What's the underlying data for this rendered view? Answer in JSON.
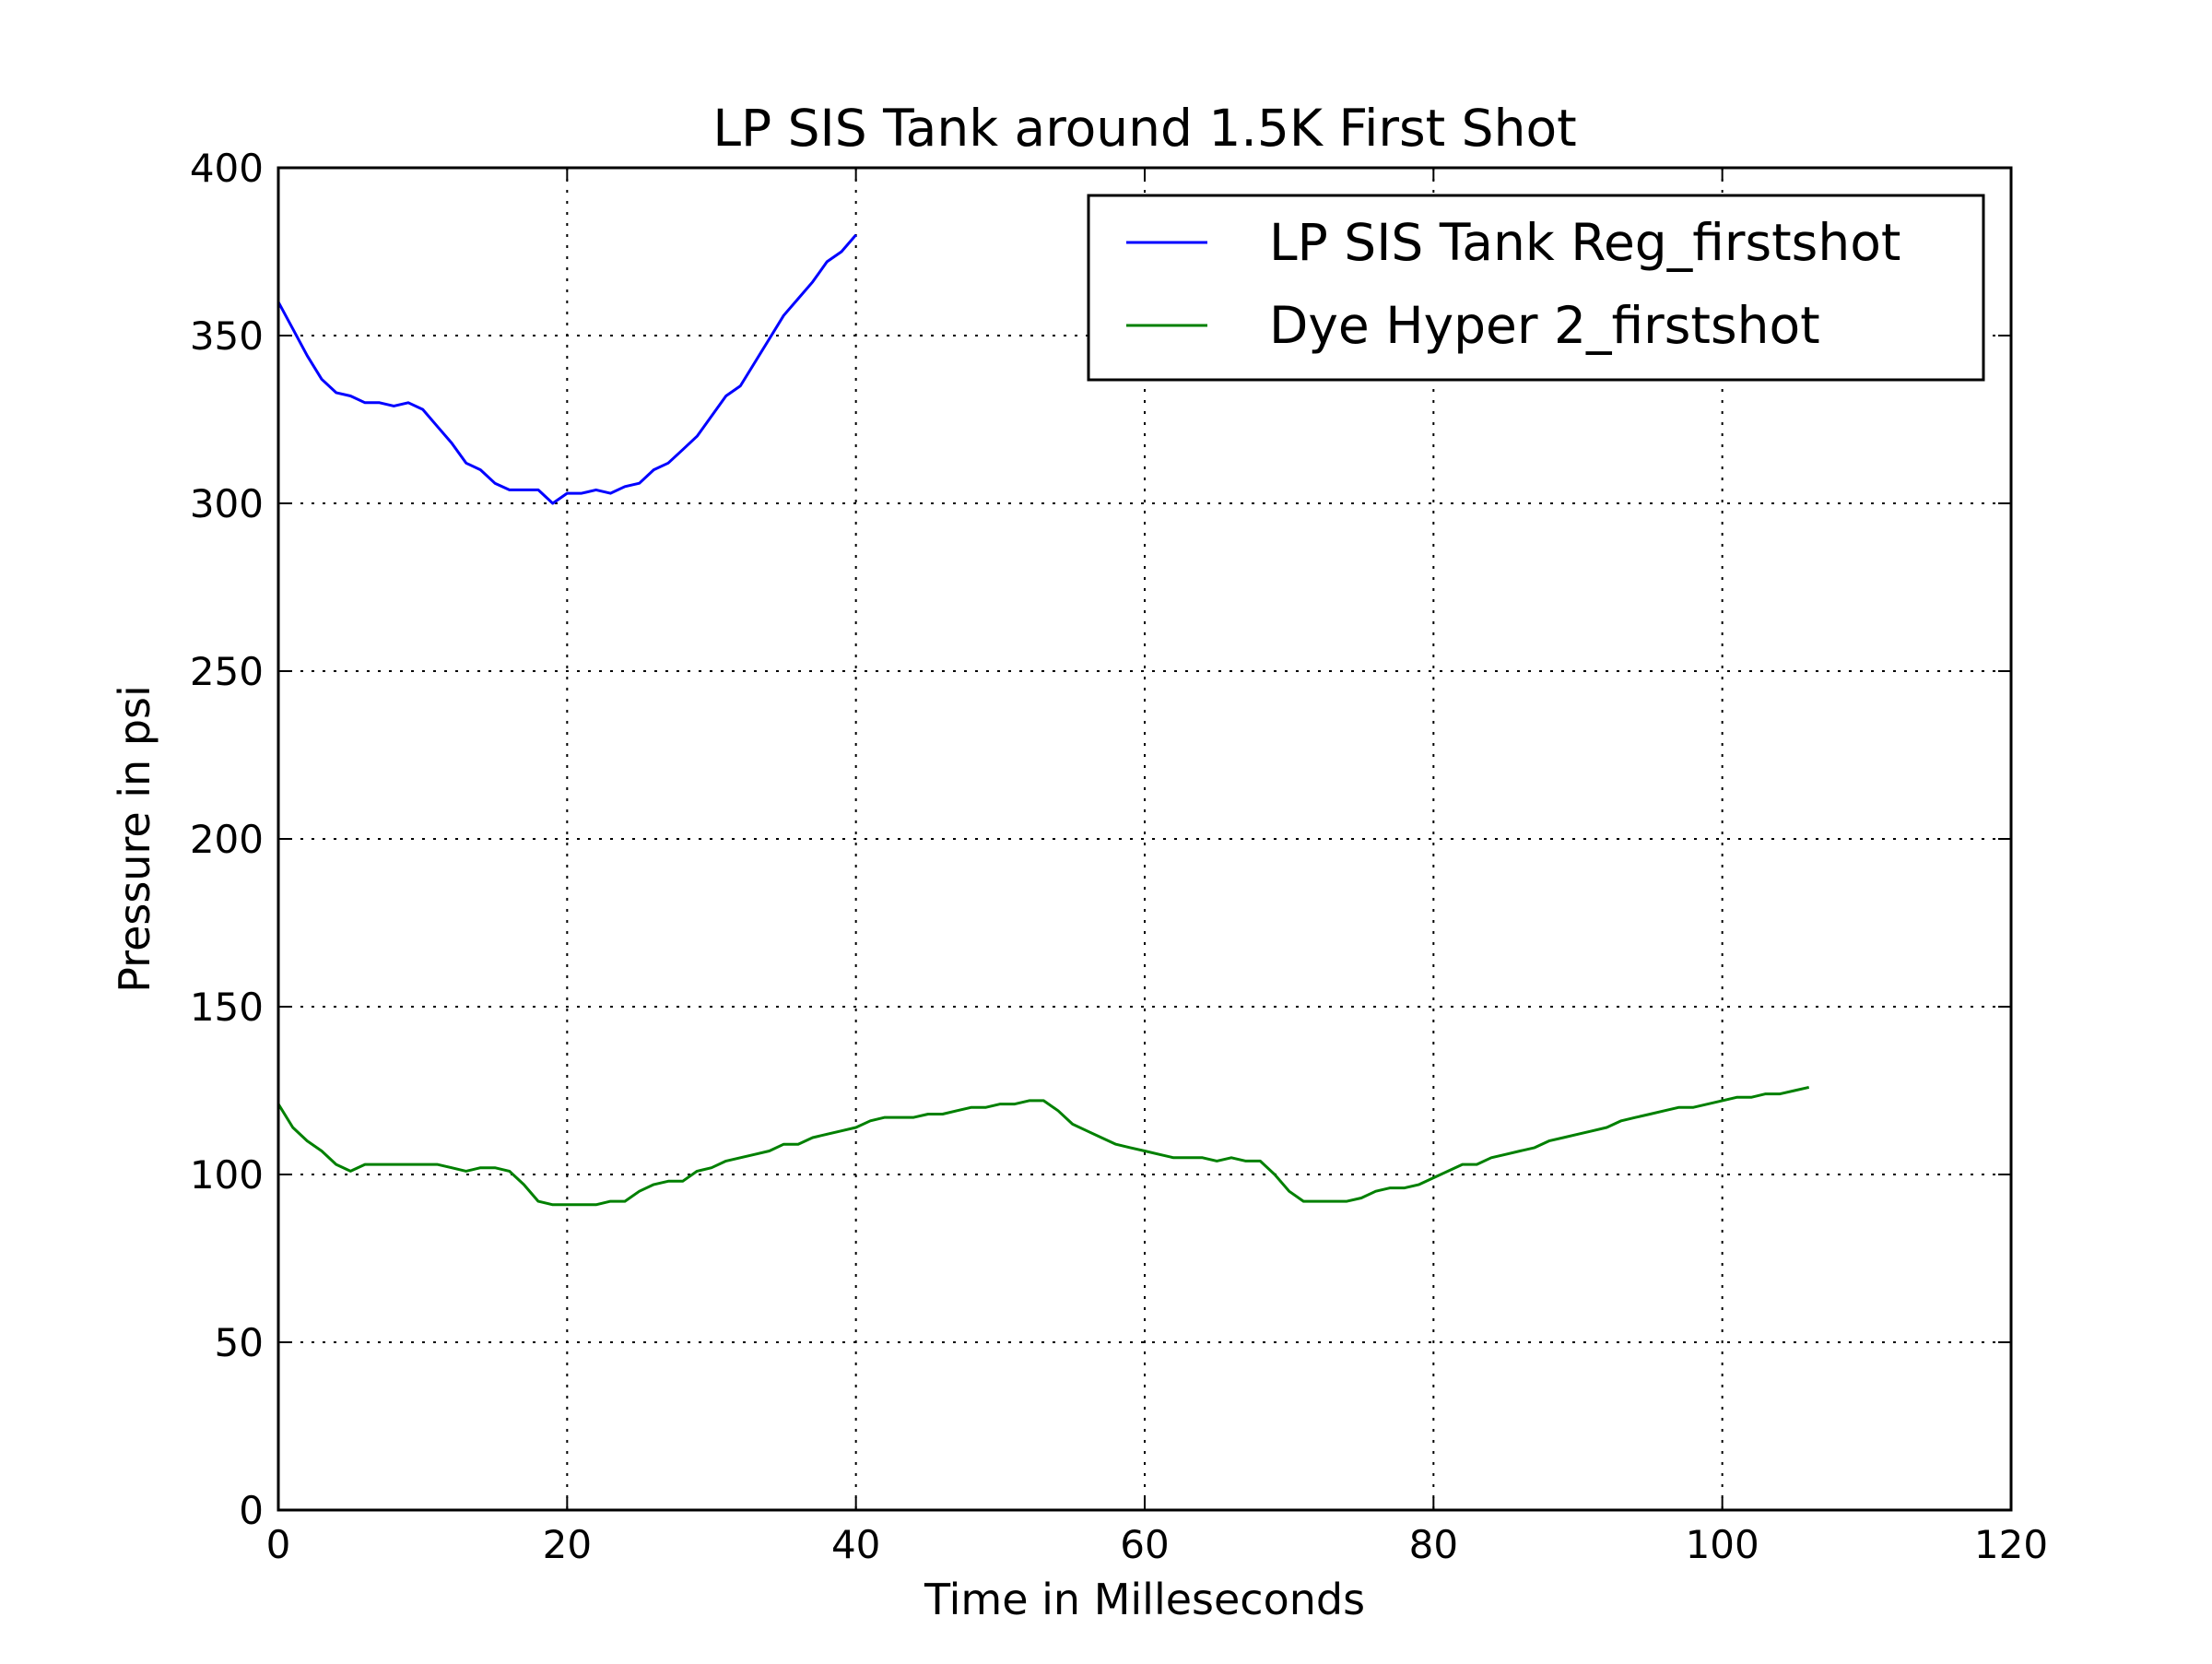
{
  "chart_data": {
    "type": "line",
    "title": "LP SIS Tank around 1.5K First Shot",
    "xlabel": "Time in Milleseconds",
    "ylabel": "Pressure in psi",
    "xlim": [
      0,
      120
    ],
    "ylim": [
      0,
      400
    ],
    "xticks": [
      0,
      20,
      40,
      60,
      80,
      100,
      120
    ],
    "yticks": [
      0,
      50,
      100,
      150,
      200,
      250,
      300,
      350,
      400
    ],
    "grid": true,
    "legend_position": "top-right",
    "series": [
      {
        "name": "LP SIS Tank Reg_firstshot",
        "color": "#0000ff",
        "x": [
          0,
          1,
          2,
          3,
          4,
          5,
          6,
          7,
          8,
          9,
          10,
          11,
          12,
          13,
          14,
          15,
          16,
          17,
          18,
          19,
          20,
          21,
          22,
          23,
          24,
          25,
          26,
          27,
          28,
          29,
          30,
          31,
          32,
          33,
          34,
          35,
          36,
          37,
          38,
          39,
          40
        ],
        "y": [
          360,
          352,
          344,
          337,
          333,
          332,
          330,
          330,
          329,
          330,
          328,
          323,
          318,
          312,
          310,
          306,
          304,
          304,
          304,
          300,
          303,
          303,
          304,
          303,
          305,
          306,
          310,
          312,
          316,
          320,
          326,
          332,
          335,
          342,
          349,
          356,
          361,
          366,
          372,
          375,
          380
        ]
      },
      {
        "name": "Dye Hyper 2_firstshot",
        "color": "#008000",
        "x": [
          0,
          1,
          2,
          3,
          4,
          5,
          6,
          7,
          8,
          9,
          10,
          11,
          12,
          13,
          14,
          15,
          16,
          17,
          18,
          19,
          20,
          21,
          22,
          23,
          24,
          25,
          26,
          27,
          28,
          29,
          30,
          31,
          32,
          33,
          34,
          35,
          36,
          37,
          38,
          39,
          40,
          41,
          42,
          43,
          44,
          45,
          46,
          47,
          48,
          49,
          50,
          51,
          52,
          53,
          54,
          55,
          56,
          57,
          58,
          59,
          60,
          61,
          62,
          63,
          64,
          65,
          66,
          67,
          68,
          69,
          70,
          71,
          72,
          73,
          74,
          75,
          76,
          77,
          78,
          79,
          80,
          81,
          82,
          83,
          84,
          85,
          86,
          87,
          88,
          89,
          90,
          91,
          92,
          93,
          94,
          95,
          96,
          97,
          98,
          99,
          100,
          101,
          102,
          103,
          104,
          105,
          106
        ],
        "y": [
          121,
          114,
          110,
          107,
          103,
          101,
          103,
          103,
          103,
          103,
          103,
          103,
          102,
          101,
          102,
          102,
          101,
          97,
          92,
          91,
          91,
          91,
          91,
          92,
          92,
          95,
          97,
          98,
          98,
          101,
          102,
          104,
          105,
          106,
          107,
          109,
          109,
          111,
          112,
          113,
          114,
          116,
          117,
          117,
          117,
          118,
          118,
          119,
          120,
          120,
          121,
          121,
          122,
          122,
          119,
          115,
          113,
          111,
          109,
          108,
          107,
          106,
          105,
          105,
          105,
          104,
          105,
          104,
          104,
          100,
          95,
          92,
          92,
          92,
          92,
          93,
          95,
          96,
          96,
          97,
          99,
          101,
          103,
          103,
          105,
          106,
          107,
          108,
          110,
          111,
          112,
          113,
          114,
          116,
          117,
          118,
          119,
          120,
          120,
          121,
          122,
          123,
          123,
          124,
          124,
          125,
          126
        ]
      }
    ]
  }
}
